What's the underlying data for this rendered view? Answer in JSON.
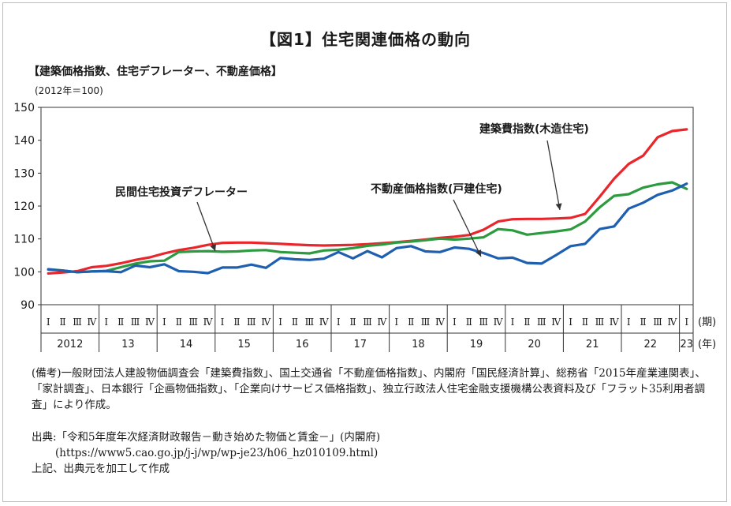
{
  "page": {
    "title": "【図1】住宅関連価格の動向",
    "subtitle": "【建築価格指数、住宅デフレーター、不動産価格】",
    "unit": "(2012年＝100)",
    "note": "(備考)一般財団法人建設物価調査会「建築費指数」、国土交通省「不動産価格指数」、内閣府「国民経済計算」、総務省「2015年産業連関表」、「家計調査」、日本銀行「企画物価指数」、「企業向けサービス価格指数」、独立行政法人住宅金融支援機構公表資料及び「フラット35利用者調査」により作成。",
    "source_line1": "出典:「令和5年度年次経済財政報告－動き始めた物価と賃金－」(内閣府)",
    "source_line2": "(https://www5.cao.go.jp/j-j/wp/wp-je23/h06_hz010109.html)",
    "source_line3": "上記、出典元を加工して作成"
  },
  "chart_data": {
    "type": "line",
    "title": "住宅関連価格の動向",
    "ylim": [
      90,
      150
    ],
    "yticks": [
      90,
      100,
      110,
      120,
      130,
      140,
      150
    ],
    "quarter_labels": [
      "Ⅰ",
      "Ⅱ",
      "Ⅲ",
      "Ⅳ"
    ],
    "year_labels": [
      "2012",
      "13",
      "14",
      "15",
      "16",
      "17",
      "18",
      "19",
      "20",
      "21",
      "22",
      "23"
    ],
    "x_period_label": "(期)",
    "x_year_label": "(年)",
    "x": [
      "2012Q1",
      "2012Q2",
      "2012Q3",
      "2012Q4",
      "2013Q1",
      "2013Q2",
      "2013Q3",
      "2013Q4",
      "2014Q1",
      "2014Q2",
      "2014Q3",
      "2014Q4",
      "2015Q1",
      "2015Q2",
      "2015Q3",
      "2015Q4",
      "2016Q1",
      "2016Q2",
      "2016Q3",
      "2016Q4",
      "2017Q1",
      "2017Q2",
      "2017Q3",
      "2017Q4",
      "2018Q1",
      "2018Q2",
      "2018Q3",
      "2018Q4",
      "2019Q1",
      "2019Q2",
      "2019Q3",
      "2019Q4",
      "2020Q1",
      "2020Q2",
      "2020Q3",
      "2020Q4",
      "2021Q1",
      "2021Q2",
      "2021Q3",
      "2021Q4",
      "2022Q1",
      "2022Q2",
      "2022Q3",
      "2022Q4",
      "2023Q1"
    ],
    "series": [
      {
        "name": "建築費指数(木造住宅)",
        "color": "#e8262b",
        "values": [
          99.5,
          99.8,
          100.2,
          101.4,
          101.8,
          102.6,
          103.6,
          104.4,
          105.6,
          106.6,
          107.3,
          108.2,
          108.8,
          108.9,
          108.9,
          108.7,
          108.5,
          108.3,
          108.1,
          108.0,
          108.1,
          108.2,
          108.4,
          108.7,
          109.0,
          109.4,
          109.8,
          110.3,
          110.7,
          111.2,
          112.8,
          115.3,
          116.0,
          116.1,
          116.1,
          116.2,
          116.4,
          117.6,
          122.8,
          128.3,
          132.8,
          135.3,
          140.9,
          142.8,
          143.3
        ]
      },
      {
        "name": "民間住宅投資デフレーター",
        "color": "#2c9a3f",
        "values": [
          100.8,
          100.4,
          99.9,
          100.1,
          100.3,
          101.4,
          102.5,
          103.2,
          103.4,
          106.0,
          106.2,
          106.3,
          106.1,
          106.2,
          106.5,
          106.6,
          106.0,
          105.8,
          105.6,
          106.5,
          106.7,
          107.2,
          107.9,
          108.3,
          108.9,
          109.2,
          109.6,
          110.1,
          109.8,
          110.1,
          110.5,
          113.0,
          112.6,
          111.3,
          111.8,
          112.3,
          112.9,
          115.3,
          119.6,
          123.1,
          123.6,
          125.6,
          126.6,
          127.2,
          125.2
        ]
      },
      {
        "name": "不動産価格指数(戸建住宅)",
        "color": "#1f5fb0",
        "values": [
          100.7,
          100.4,
          99.9,
          100.1,
          100.2,
          99.9,
          101.9,
          101.4,
          102.3,
          100.2,
          100.0,
          99.6,
          101.3,
          101.3,
          102.2,
          101.2,
          104.2,
          103.8,
          103.6,
          104.0,
          106.0,
          104.1,
          106.3,
          104.4,
          107.2,
          107.8,
          106.2,
          106.0,
          107.4,
          107.0,
          105.7,
          104.1,
          104.3,
          102.7,
          102.5,
          105.1,
          107.8,
          108.5,
          113.0,
          113.8,
          119.2,
          121.0,
          123.4,
          124.7,
          126.8
        ]
      }
    ],
    "annotations": [
      {
        "text": "建築費指数(木造住宅)",
        "series": 0
      },
      {
        "text": "民間住宅投資デフレーター",
        "series": 1
      },
      {
        "text": "不動産価格指数(戸建住宅)",
        "series": 2
      }
    ]
  }
}
